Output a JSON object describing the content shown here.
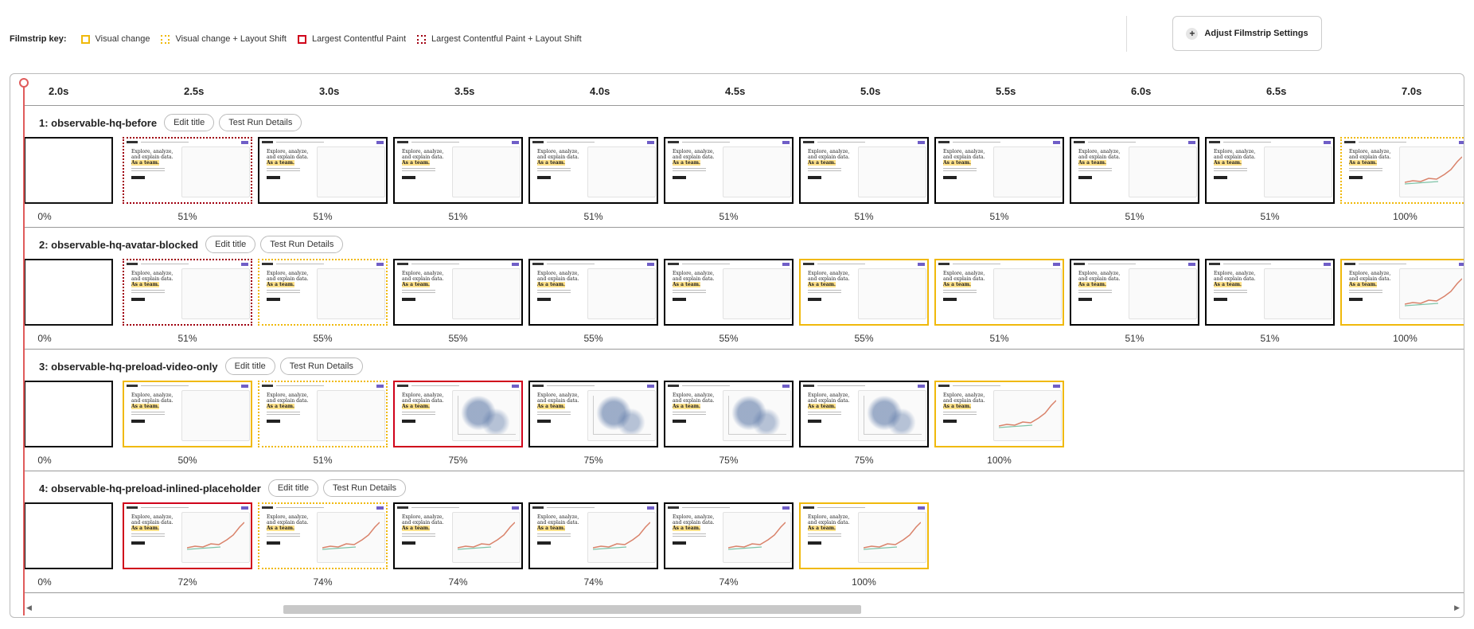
{
  "key": {
    "title": "Filmstrip key:",
    "items": [
      {
        "id": "visual",
        "label": "Visual change",
        "color": "#f0b90b"
      },
      {
        "id": "visual-shift",
        "label": "Visual change + Layout Shift",
        "color": "#f0b90b"
      },
      {
        "id": "lcp",
        "label": "Largest Contentful Paint",
        "color": "#d0021b"
      },
      {
        "id": "lcp-shift",
        "label": "Largest Contentful Paint + Layout Shift",
        "color": "#a00010"
      }
    ]
  },
  "adjust_button": {
    "label": "Adjust Filmstrip Settings",
    "icon": "plus-icon"
  },
  "timeline": [
    "2.0s",
    "2.5s",
    "3.0s",
    "3.5s",
    "4.0s",
    "4.5s",
    "5.0s",
    "5.5s",
    "6.0s",
    "6.5s",
    "7.0s"
  ],
  "thumbnail_text": {
    "line1": "Explore, analyze,",
    "line2": "and explain data.",
    "line3": "As a team."
  },
  "runs": [
    {
      "title": "1: observable-hq-before",
      "edit_label": "Edit title",
      "details_label": "Test Run Details",
      "frames": [
        {
          "pct": "0%",
          "border": "blank",
          "content": "blank"
        },
        {
          "pct": "51%",
          "border": "lcp-shift",
          "content": "hero"
        },
        {
          "pct": "51%",
          "border": "plain",
          "content": "hero"
        },
        {
          "pct": "51%",
          "border": "plain",
          "content": "hero"
        },
        {
          "pct": "51%",
          "border": "plain",
          "content": "hero"
        },
        {
          "pct": "51%",
          "border": "plain",
          "content": "hero"
        },
        {
          "pct": "51%",
          "border": "plain",
          "content": "hero"
        },
        {
          "pct": "51%",
          "border": "plain",
          "content": "hero"
        },
        {
          "pct": "51%",
          "border": "plain",
          "content": "hero"
        },
        {
          "pct": "51%",
          "border": "plain",
          "content": "hero"
        },
        {
          "pct": "100%",
          "border": "visual-shift",
          "content": "line"
        }
      ]
    },
    {
      "title": "2: observable-hq-avatar-blocked",
      "edit_label": "Edit title",
      "details_label": "Test Run Details",
      "frames": [
        {
          "pct": "0%",
          "border": "blank",
          "content": "blank"
        },
        {
          "pct": "51%",
          "border": "lcp-shift",
          "content": "hero"
        },
        {
          "pct": "55%",
          "border": "visual-shift",
          "content": "hero"
        },
        {
          "pct": "55%",
          "border": "plain",
          "content": "hero"
        },
        {
          "pct": "55%",
          "border": "plain",
          "content": "hero"
        },
        {
          "pct": "55%",
          "border": "plain",
          "content": "hero"
        },
        {
          "pct": "55%",
          "border": "visual",
          "content": "hero"
        },
        {
          "pct": "51%",
          "border": "visual",
          "content": "hero"
        },
        {
          "pct": "51%",
          "border": "plain",
          "content": "hero"
        },
        {
          "pct": "51%",
          "border": "plain",
          "content": "hero"
        },
        {
          "pct": "100%",
          "border": "visual",
          "content": "line"
        }
      ]
    },
    {
      "title": "3: observable-hq-preload-video-only",
      "edit_label": "Edit title",
      "details_label": "Test Run Details",
      "frames": [
        {
          "pct": "0%",
          "border": "blank",
          "content": "blank"
        },
        {
          "pct": "50%",
          "border": "visual",
          "content": "hero"
        },
        {
          "pct": "51%",
          "border": "visual-shift",
          "content": "hero"
        },
        {
          "pct": "75%",
          "border": "lcp",
          "content": "scatter"
        },
        {
          "pct": "75%",
          "border": "plain",
          "content": "scatter"
        },
        {
          "pct": "75%",
          "border": "plain",
          "content": "scatter"
        },
        {
          "pct": "75%",
          "border": "plain",
          "content": "scatter"
        },
        {
          "pct": "100%",
          "border": "visual",
          "content": "line"
        }
      ]
    },
    {
      "title": "4: observable-hq-preload-inlined-placeholder",
      "edit_label": "Edit title",
      "details_label": "Test Run Details",
      "frames": [
        {
          "pct": "0%",
          "border": "blank",
          "content": "blank"
        },
        {
          "pct": "72%",
          "border": "lcp",
          "content": "line"
        },
        {
          "pct": "74%",
          "border": "visual-shift",
          "content": "line"
        },
        {
          "pct": "74%",
          "border": "plain",
          "content": "line"
        },
        {
          "pct": "74%",
          "border": "plain",
          "content": "line"
        },
        {
          "pct": "74%",
          "border": "plain",
          "content": "line"
        },
        {
          "pct": "100%",
          "border": "visual",
          "content": "line"
        }
      ]
    }
  ],
  "scrollbar": {
    "left_arrow": "◀",
    "right_arrow": "▶"
  }
}
